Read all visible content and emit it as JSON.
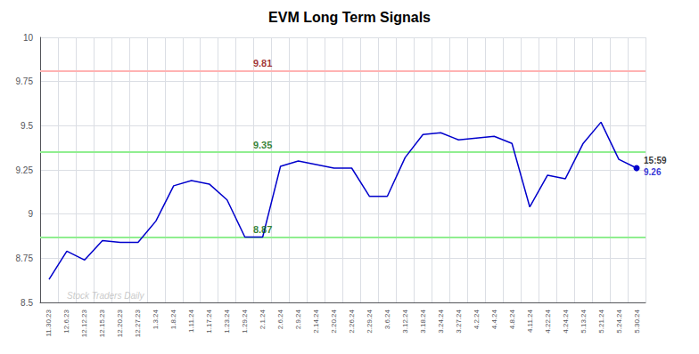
{
  "chart_data": {
    "type": "line",
    "title": "EVM Long Term Signals",
    "categories": [
      "11.30.23",
      "12.6.23",
      "12.12.23",
      "12.15.23",
      "12.20.23",
      "12.27.23",
      "1.3.24",
      "1.8.24",
      "1.11.24",
      "1.17.24",
      "1.23.24",
      "1.29.24",
      "2.1.24",
      "2.6.24",
      "2.9.24",
      "2.14.24",
      "2.20.24",
      "2.26.24",
      "2.29.24",
      "3.6.24",
      "3.12.24",
      "3.18.24",
      "3.24.24",
      "3.27.24",
      "4.2.24",
      "4.4.24",
      "4.8.24",
      "4.11.24",
      "4.22.24",
      "4.24.24",
      "5.13.24",
      "5.21.24",
      "5.24.24",
      "5.30.24"
    ],
    "values": [
      8.63,
      8.79,
      8.74,
      8.85,
      8.84,
      8.84,
      8.96,
      9.16,
      9.19,
      9.17,
      9.08,
      8.87,
      8.87,
      9.27,
      9.3,
      9.28,
      9.26,
      9.26,
      9.1,
      9.1,
      9.32,
      9.45,
      9.46,
      9.42,
      9.43,
      9.44,
      9.4,
      9.04,
      9.22,
      9.2,
      9.4,
      9.52,
      9.31,
      9.26
    ],
    "color": "#0000cc",
    "ylim": [
      8.5,
      10.0
    ],
    "yticks": [
      8.5,
      8.75,
      9,
      9.25,
      9.5,
      9.75,
      10
    ],
    "grid": true,
    "reference_lines": [
      {
        "value": 9.81,
        "color": "#ffb3b3",
        "label": "9.81",
        "label_color": "#8b0000",
        "label_x": "2.1.24"
      },
      {
        "value": 9.35,
        "color": "#90ee90",
        "label": "9.35",
        "label_color": "#006400",
        "label_x": "2.1.24"
      },
      {
        "value": 8.87,
        "color": "#90ee90",
        "label": "8.87",
        "label_color": "#006400",
        "label_x": "2.1.24"
      }
    ],
    "last_point": {
      "time": "15:59",
      "time_color": "#000000",
      "label": "9.26",
      "label_color": "#0000cc"
    },
    "watermark": {
      "text": "Stock Traders Daily",
      "color": "#bbbbbb",
      "x": "12.6.23",
      "y": 8.515
    }
  }
}
